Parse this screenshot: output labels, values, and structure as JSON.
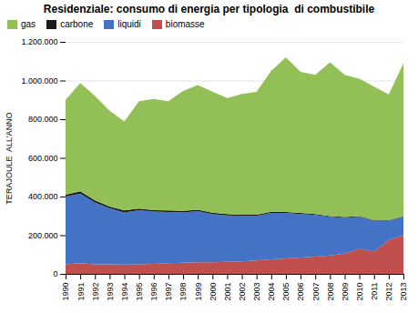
{
  "chart_data": {
    "type": "area",
    "title": "Residenziale: consumo di energia per tipologia  di combustibile",
    "ylabel": "TERAJOULE  ALL'ANNO",
    "x": [
      1990,
      1991,
      1992,
      1993,
      1994,
      1995,
      1996,
      1997,
      1998,
      1999,
      2000,
      2001,
      2002,
      2003,
      2004,
      2005,
      2006,
      2007,
      2008,
      2009,
      2010,
      2011,
      2012,
      2013
    ],
    "series": [
      {
        "name": "biomasse",
        "color": "#c0504d",
        "values": [
          50000,
          55000,
          50000,
          50000,
          48000,
          50000,
          52000,
          55000,
          58000,
          60000,
          60000,
          62000,
          65000,
          70000,
          75000,
          80000,
          85000,
          90000,
          95000,
          105000,
          130000,
          115000,
          175000,
          200000
        ]
      },
      {
        "name": "liquidi",
        "color": "#4472c4",
        "values": [
          350000,
          360000,
          320000,
          290000,
          270000,
          280000,
          270000,
          265000,
          260000,
          265000,
          250000,
          240000,
          235000,
          230000,
          240000,
          235000,
          225000,
          215000,
          200000,
          185000,
          165000,
          160000,
          100000,
          95000
        ]
      },
      {
        "name": "carbone",
        "color": "#1a1a1a",
        "values": [
          10000,
          12000,
          10000,
          8000,
          10000,
          8000,
          8000,
          8000,
          8000,
          7000,
          7000,
          7000,
          6000,
          6000,
          6000,
          5000,
          5000,
          5000,
          4000,
          4000,
          4000,
          3000,
          3000,
          3000
        ]
      },
      {
        "name": "gas",
        "color": "#92c057",
        "values": [
          490000,
          560000,
          540000,
          495000,
          460000,
          555000,
          575000,
          565000,
          620000,
          645000,
          625000,
          600000,
          625000,
          635000,
          730000,
          800000,
          730000,
          720000,
          795000,
          735000,
          710000,
          690000,
          650000,
          790000
        ]
      }
    ],
    "xlim": [
      1990,
      2013
    ],
    "xticks": [
      1990,
      1991,
      1992,
      1993,
      1994,
      1995,
      1996,
      1997,
      1998,
      1999,
      2000,
      2001,
      2002,
      2003,
      2004,
      2005,
      2006,
      2007,
      2008,
      2009,
      2010,
      2011,
      2012,
      2013
    ],
    "ylim": [
      0,
      1200000
    ],
    "yticks": [
      0,
      {
        "value": 200000,
        "label": "200.000"
      },
      {
        "value": 400000,
        "label": "400.000"
      },
      {
        "value": 600000,
        "label": "600.000"
      },
      {
        "value": 800000,
        "label": "800.000"
      },
      {
        "value": 1000000,
        "label": "1.000.000"
      },
      {
        "value": 1200000,
        "label": "1.200.000"
      }
    ],
    "grid": true,
    "legend": "upper left",
    "stacked": true
  }
}
